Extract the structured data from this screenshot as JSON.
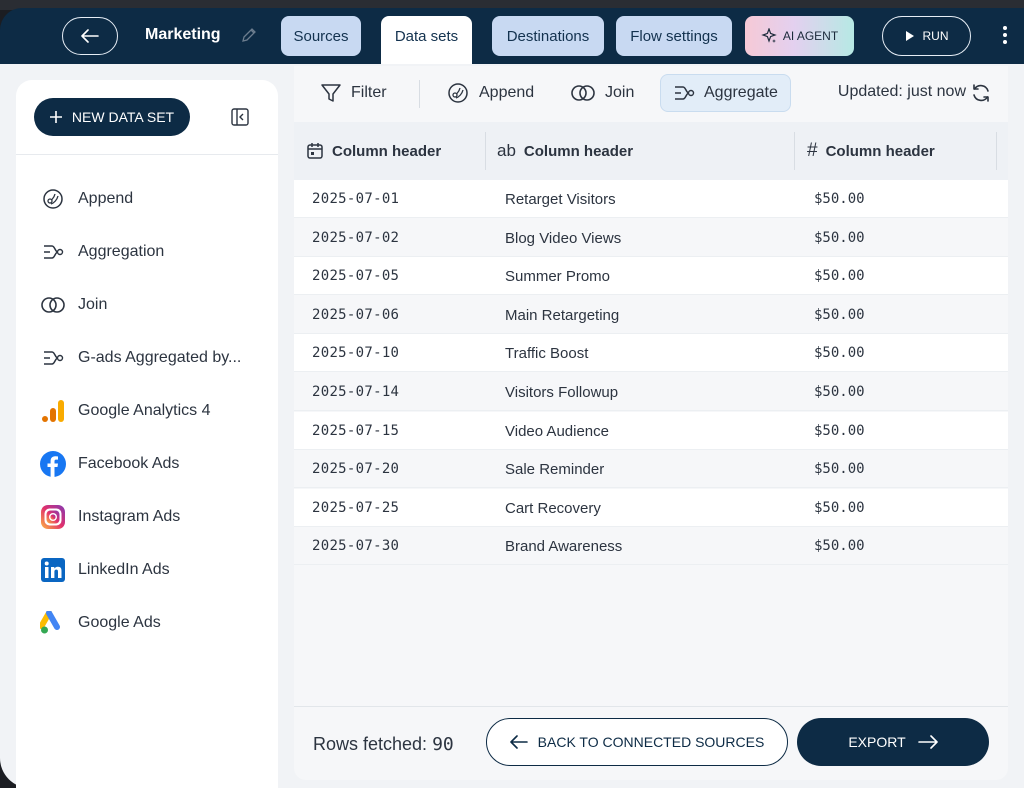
{
  "header": {
    "title": "Marketing",
    "tabs": [
      {
        "label": "Sources"
      },
      {
        "label": "Data sets"
      },
      {
        "label": "Destinations"
      },
      {
        "label": "Flow settings"
      }
    ],
    "ai_agent_label": "AI AGENT",
    "run_label": "RUN"
  },
  "sidebar": {
    "new_data_set_label": "NEW DATA SET",
    "items": [
      {
        "label": "Append",
        "icon": "append-icon"
      },
      {
        "label": "Aggregation",
        "icon": "aggregate-icon"
      },
      {
        "label": "Join",
        "icon": "join-icon"
      },
      {
        "label": "G-ads Aggregated by...",
        "icon": "aggregate-icon"
      },
      {
        "label": "Google Analytics 4",
        "icon": "google-analytics-icon"
      },
      {
        "label": "Facebook Ads",
        "icon": "facebook-icon"
      },
      {
        "label": "Instagram Ads",
        "icon": "instagram-icon"
      },
      {
        "label": "LinkedIn Ads",
        "icon": "linkedin-icon"
      },
      {
        "label": "Google Ads",
        "icon": "google-ads-icon"
      }
    ]
  },
  "toolbar": {
    "filter_label": "Filter",
    "append_label": "Append",
    "join_label": "Join",
    "aggregate_label": "Aggregate",
    "updated_text": "Updated: just now"
  },
  "table": {
    "columns": [
      {
        "label": "Column header",
        "type_icon": "calendar-icon"
      },
      {
        "label": "Column header",
        "type_icon": "text-type-icon"
      },
      {
        "label": "Column header",
        "type_icon": "number-type-icon"
      }
    ],
    "rows": [
      [
        "2025-07-01",
        "Retarget Visitors",
        "$50.00"
      ],
      [
        "2025-07-02",
        "Blog Video Views",
        "$50.00"
      ],
      [
        "2025-07-05",
        "Summer Promo",
        "$50.00"
      ],
      [
        "2025-07-06",
        "Main Retargeting",
        "$50.00"
      ],
      [
        "2025-07-10",
        "Traffic Boost",
        "$50.00"
      ],
      [
        "2025-07-14",
        "Visitors Followup",
        "$50.00"
      ],
      [
        "2025-07-15",
        "Video Audience",
        "$50.00"
      ],
      [
        "2025-07-20",
        "Sale Reminder",
        "$50.00"
      ],
      [
        "2025-07-25",
        "Cart Recovery",
        "$50.00"
      ],
      [
        "2025-07-30",
        "Brand Awareness",
        "$50.00"
      ]
    ]
  },
  "footer": {
    "rows_fetched_label": "Rows fetched:",
    "rows_fetched_value": "90",
    "back_label": "BACK TO CONNECTED SOURCES",
    "export_label": "EXPORT"
  },
  "colors": {
    "navy": "#0d2b45",
    "tab_bg": "#c8d9f2",
    "active_tool_bg": "#e2edf8"
  }
}
